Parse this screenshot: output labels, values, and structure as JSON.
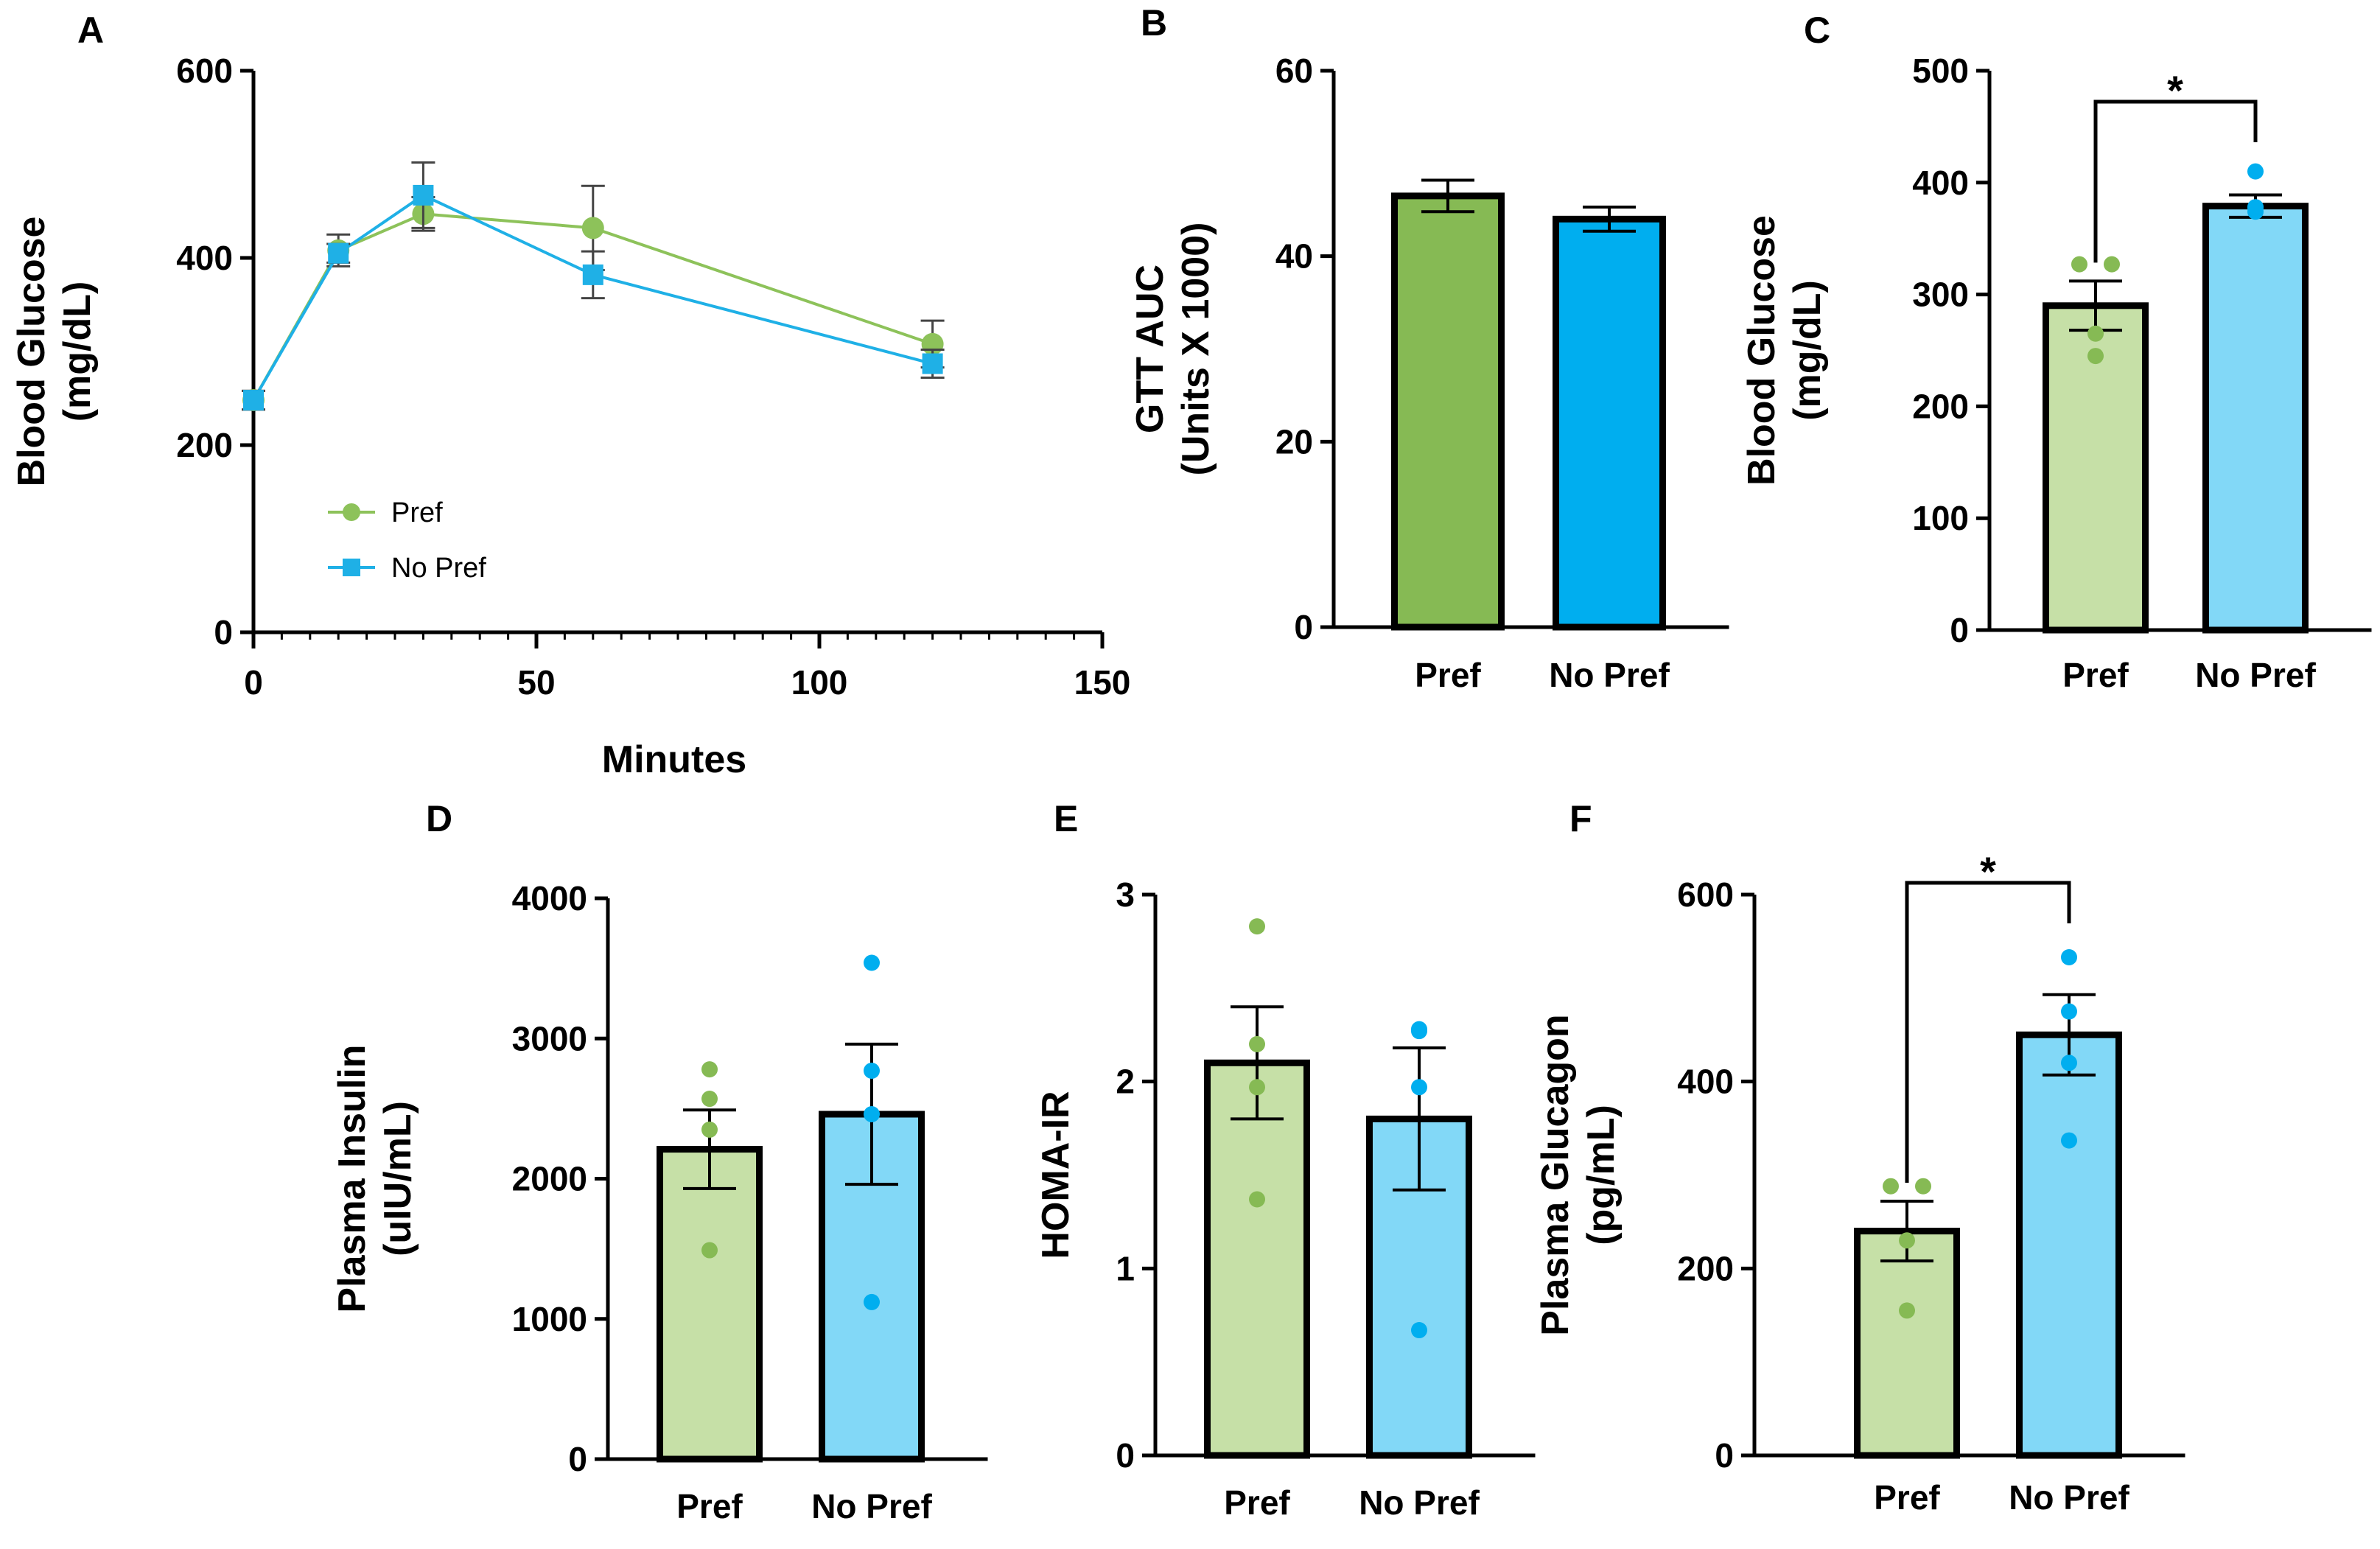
{
  "chart_data": [
    {
      "panel": "A",
      "type": "line",
      "xlabel": "Minutes",
      "ylabel": "Blood Glucose",
      "ylabel_unit": "(mg/dL)",
      "xlim": [
        0,
        150
      ],
      "ylim": [
        0,
        600
      ],
      "xticks": [
        "0",
        "50",
        "100",
        "150"
      ],
      "yticks": [
        "0",
        "200",
        "400",
        "600"
      ],
      "x": [
        0,
        15,
        30,
        60,
        120
      ],
      "series": [
        {
          "name": "Pref",
          "color": "#8dc25a",
          "marker": "circle",
          "values": [
            248,
            408,
            447,
            432,
            308
          ],
          "errors": [
            10,
            17,
            18,
            45,
            25
          ]
        },
        {
          "name": "No Pref",
          "color": "#1fb0e6",
          "marker": "square",
          "values": [
            248,
            405,
            467,
            382,
            287
          ],
          "errors": [
            10,
            10,
            35,
            25,
            15
          ]
        }
      ],
      "legend": "bottom-left"
    },
    {
      "panel": "B",
      "type": "bar",
      "ylabel": "GTT AUC",
      "ylabel_unit": "(Units X 1000)",
      "ylim": [
        0,
        60
      ],
      "yticks": [
        "0",
        "20",
        "40",
        "60"
      ],
      "categories": [
        "Pref",
        "No Pref"
      ],
      "colors": [
        "#86ba54",
        "#00aeef"
      ],
      "values": [
        46.5,
        44.0
      ],
      "errors": [
        1.7,
        1.3
      ],
      "points": [
        [],
        []
      ]
    },
    {
      "panel": "C",
      "type": "bar",
      "ylabel": "Blood Glucose",
      "ylabel_unit": "(mg/dL)",
      "ylim": [
        0,
        500
      ],
      "yticks": [
        "0",
        "100",
        "200",
        "300",
        "400",
        "500"
      ],
      "categories": [
        "Pref",
        "No Pref"
      ],
      "colors": [
        "#c6e0a7",
        "#82d8f7"
      ],
      "values": [
        290,
        379
      ],
      "errors": [
        22,
        10
      ],
      "points": [
        [
          327,
          327,
          265,
          245
        ],
        [
          410,
          378,
          378,
          374
        ]
      ],
      "significance": "*"
    },
    {
      "panel": "D",
      "type": "bar",
      "ylabel": "Plasma Insulin",
      "ylabel_unit": "(uIU/mL)",
      "ylim": [
        0,
        4000
      ],
      "yticks": [
        "0",
        "1000",
        "2000",
        "3000",
        "4000"
      ],
      "categories": [
        "Pref",
        "No Pref"
      ],
      "colors": [
        "#c6e0a7",
        "#82d8f7"
      ],
      "values": [
        2210,
        2460
      ],
      "errors": [
        280,
        500
      ],
      "points": [
        [
          2780,
          2570,
          2350,
          1490
        ],
        [
          3540,
          2770,
          2460,
          1120
        ]
      ]
    },
    {
      "panel": "E",
      "type": "bar",
      "ylabel": "HOMA-IR",
      "ylabel_unit": "",
      "ylim": [
        0,
        3
      ],
      "yticks": [
        "0",
        "1",
        "2",
        "3"
      ],
      "categories": [
        "Pref",
        "No Pref"
      ],
      "colors": [
        "#c6e0a7",
        "#82d8f7"
      ],
      "values": [
        2.1,
        1.8
      ],
      "errors": [
        0.3,
        0.38
      ],
      "points": [
        [
          2.83,
          2.2,
          1.97,
          1.37
        ],
        [
          2.28,
          2.27,
          1.97,
          0.67
        ]
      ]
    },
    {
      "panel": "F",
      "type": "bar",
      "ylabel": "Plasma Glucagon",
      "ylabel_unit": "(pg/mL)",
      "ylim": [
        0,
        600
      ],
      "yticks": [
        "0",
        "200",
        "400",
        "600"
      ],
      "categories": [
        "Pref",
        "No Pref"
      ],
      "colors": [
        "#c6e0a7",
        "#82d8f7"
      ],
      "values": [
        240,
        450
      ],
      "errors": [
        32,
        43
      ],
      "points": [
        [
          288,
          288,
          230,
          155
        ],
        [
          533,
          475,
          420,
          337
        ]
      ],
      "significance": "*"
    }
  ]
}
